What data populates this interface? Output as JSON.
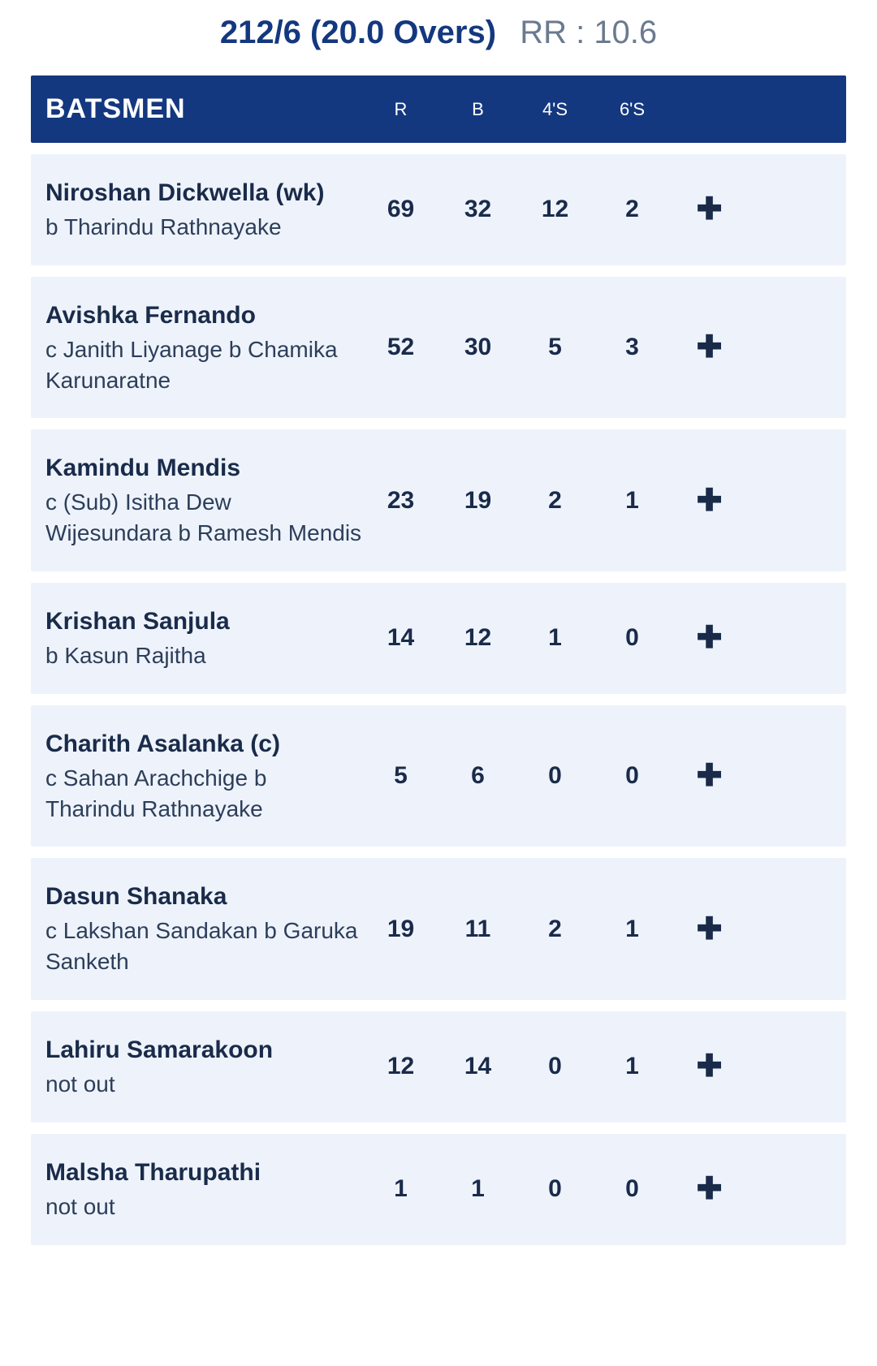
{
  "colors": {
    "header_bg": "#14387f",
    "header_text": "#ffffff",
    "row_bg": "#eef3fb",
    "body_text": "#1a2b4a",
    "muted_text": "#6b7a8f",
    "page_bg": "#ffffff"
  },
  "score": {
    "main": "212/6 (20.0 Overs)",
    "rr_label": "RR :",
    "rr_value": "10.6"
  },
  "headers": {
    "batsmen": "BATSMEN",
    "runs": "R",
    "balls": "B",
    "fours": "4'S",
    "sixes": "6'S"
  },
  "batsmen": [
    {
      "name": "Niroshan Dickwella (wk)",
      "dismissal": "b Tharindu Rathnayake",
      "r": "69",
      "b": "32",
      "fours": "12",
      "sixes": "2"
    },
    {
      "name": "Avishka Fernando",
      "dismissal": "c Janith Liyanage b Chamika Karunaratne",
      "r": "52",
      "b": "30",
      "fours": "5",
      "sixes": "3"
    },
    {
      "name": "Kamindu Mendis",
      "dismissal": "c (Sub) Isitha Dew Wijesundara b Ramesh Mendis",
      "r": "23",
      "b": "19",
      "fours": "2",
      "sixes": "1"
    },
    {
      "name": "Krishan Sanjula",
      "dismissal": "b Kasun Rajitha",
      "r": "14",
      "b": "12",
      "fours": "1",
      "sixes": "0"
    },
    {
      "name": "Charith Asalanka (c)",
      "dismissal": "c Sahan Arachchige b Tharindu Rathnayake",
      "r": "5",
      "b": "6",
      "fours": "0",
      "sixes": "0"
    },
    {
      "name": "Dasun Shanaka",
      "dismissal": "c Lakshan Sandakan b Garuka Sanketh",
      "r": "19",
      "b": "11",
      "fours": "2",
      "sixes": "1"
    },
    {
      "name": "Lahiru Samarakoon",
      "dismissal": "not out",
      "r": "12",
      "b": "14",
      "fours": "0",
      "sixes": "1"
    },
    {
      "name": "Malsha Tharupathi",
      "dismissal": "not out",
      "r": "1",
      "b": "1",
      "fours": "0",
      "sixes": "0"
    }
  ]
}
